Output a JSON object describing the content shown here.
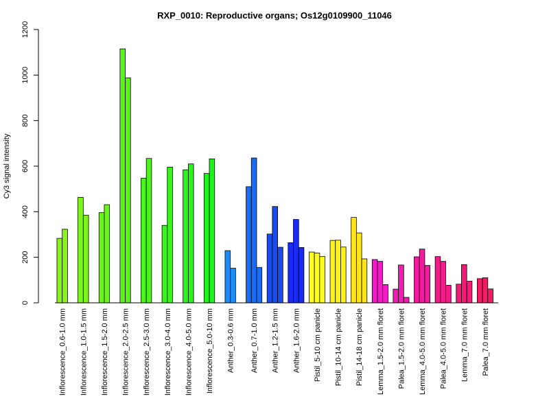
{
  "chart_data": {
    "type": "bar",
    "title": "RXP_0010: Reproductive organs; Os12g0109900_11046",
    "xlabel": "",
    "ylabel": "Cy3 signal intensity",
    "ylim": [
      0,
      1200
    ],
    "yticks": [
      0,
      200,
      400,
      600,
      800,
      1000,
      1200
    ],
    "grid": false,
    "groups": [
      {
        "label": "Inflorescence_0.6-1.0 mm",
        "color": "#8BF41A",
        "values": [
          283,
          323
        ]
      },
      {
        "label": "Inflorescence_1.0-1.5 mm",
        "color": "#7DF41A",
        "values": [
          463,
          385
        ]
      },
      {
        "label": "Inflorescence_1.5-2.0 mm",
        "color": "#6CF41A",
        "values": [
          396,
          431
        ]
      },
      {
        "label": "Inflorescence_2.0-2.5 mm",
        "color": "#5BF41A",
        "values": [
          1115,
          988
        ]
      },
      {
        "label": "Inflorescence_2.5-3.0 mm",
        "color": "#4BF41A",
        "values": [
          547,
          634
        ]
      },
      {
        "label": "Inflorescence_3.0-4.0 mm",
        "color": "#3BF41A",
        "values": [
          340,
          596
        ]
      },
      {
        "label": "Inflorescence_4.0-5.0 mm",
        "color": "#2BF41A",
        "values": [
          584,
          610
        ]
      },
      {
        "label": "Inflorescence_5.0-10 mm",
        "color": "#1DF41A",
        "values": [
          568,
          632
        ]
      },
      {
        "label": "Anther_0.3-0.6 mm",
        "color": "#1A8CF4",
        "values": [
          229,
          152
        ]
      },
      {
        "label": "Anther_0.7-1.0 mm",
        "color": "#1A6CF4",
        "values": [
          510,
          636,
          155
        ]
      },
      {
        "label": "Anther_1.2-1.5 mm",
        "color": "#1A4CF4",
        "values": [
          302,
          423,
          244
        ]
      },
      {
        "label": "Anther_1.6-2.0 mm",
        "color": "#1A2CF4",
        "values": [
          264,
          366,
          243
        ]
      },
      {
        "label": "Pistil_5-10 cm panicle",
        "color": "#FFFF1A",
        "values": [
          223,
          219,
          203
        ]
      },
      {
        "label": "Pistil_10-14 cm panicle",
        "color": "#FFF21A",
        "values": [
          274,
          275,
          245
        ]
      },
      {
        "label": "Pistil_14-18 cm panicle",
        "color": "#FFE51A",
        "values": [
          375,
          307,
          193
        ]
      },
      {
        "label": "Lemma_1.5-2.0 mm floret",
        "color": "#F41AC8",
        "values": [
          190,
          182,
          80
        ]
      },
      {
        "label": "Palea_1.5-2.0 mm floret",
        "color": "#F41AB4",
        "values": [
          60,
          166,
          24
        ]
      },
      {
        "label": "Lemma_4.0-5.0 mm floret",
        "color": "#F41AA0",
        "values": [
          202,
          236,
          164
        ]
      },
      {
        "label": "Palea_4.0-5.0 mm floret",
        "color": "#F41A8C",
        "values": [
          203,
          182,
          77
        ]
      },
      {
        "label": "Lemma_7.0 mm floret",
        "color": "#F41A78",
        "values": [
          82,
          168,
          95
        ]
      },
      {
        "label": "Palea_7.0 mm floret",
        "color": "#F41A64",
        "values": [
          106,
          110,
          61
        ]
      }
    ]
  }
}
